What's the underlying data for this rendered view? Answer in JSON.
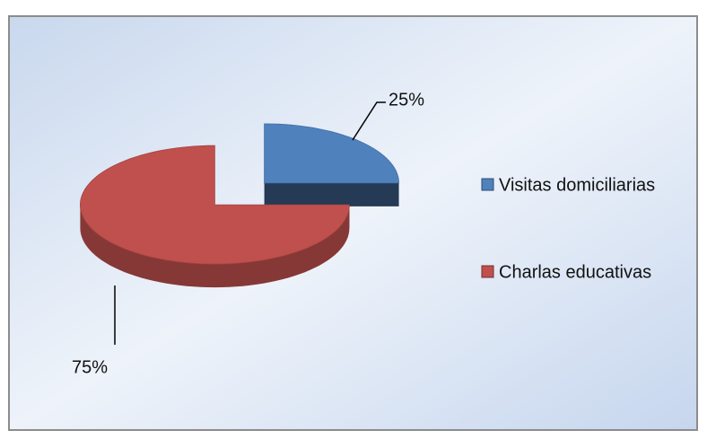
{
  "chart_data": {
    "type": "pie",
    "categories": [
      "Visitas domiciliarias",
      "Charlas educativas"
    ],
    "values": [
      25,
      75
    ],
    "value_labels": [
      "25%",
      "75%"
    ],
    "colors": [
      "#4f81bd",
      "#c0504d"
    ],
    "legend": "right"
  }
}
